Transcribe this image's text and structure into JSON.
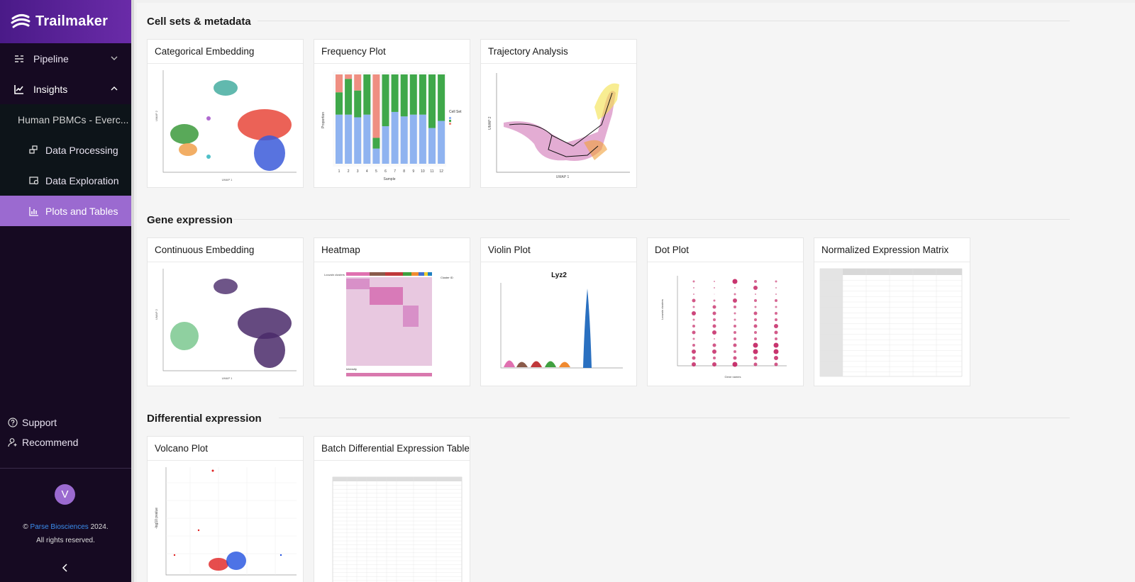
{
  "brand": {
    "name": "Trailmaker"
  },
  "nav": {
    "pipeline": "Pipeline",
    "insights": "Insights",
    "project": "Human PBMCs - Everc...",
    "data_processing": "Data Processing",
    "data_exploration": "Data Exploration",
    "plots_tables": "Plots and Tables"
  },
  "bottom": {
    "support": "Support",
    "recommend": "Recommend",
    "avatar_letter": "V",
    "copyright_prefix": "©",
    "copyright_company": "Parse Biosciences",
    "copyright_year": "2024.",
    "rights": "All rights reserved."
  },
  "sections": {
    "cell_sets": "Cell sets & metadata",
    "gene_expression": "Gene expression",
    "differential": "Differential expression"
  },
  "cards": {
    "categorical_embedding": "Categorical Embedding",
    "frequency_plot": "Frequency Plot",
    "trajectory_analysis": "Trajectory Analysis",
    "continuous_embedding": "Continuous Embedding",
    "heatmap": "Heatmap",
    "violin_plot": "Violin Plot",
    "dot_plot": "Dot Plot",
    "normalized_matrix": "Normalized Expression Matrix",
    "volcano_plot": "Volcano Plot",
    "batch_de_table": "Batch Differential Expression Table"
  },
  "thumb_text": {
    "umap1": "UMAP 1",
    "umap2": "UMAP 2",
    "proportion": "Proportion",
    "sample": "Sample",
    "cell_set": "Cell Set",
    "freq_ticks": [
      "1",
      "2",
      "3",
      "4",
      "5",
      "6",
      "7",
      "8",
      "9",
      "10",
      "11",
      "12"
    ],
    "violin_title": "Lyz2",
    "louvain": "Louvain clusters",
    "cluster_id": "Cluster ID",
    "intensity": "Intensity",
    "gene_names": "Gene names",
    "log10": "-log10 pvalue"
  },
  "colors": {
    "sidebar_bg": "#160a22",
    "brand_purple": "#5a23a0",
    "active_item": "#9b6ad0",
    "link_blue": "#3b8ff0"
  },
  "icons": {
    "pipeline": "pipeline-icon",
    "insights": "chart-icon",
    "support": "question-circle-icon",
    "recommend": "user-add-icon",
    "collapse": "chevron-left-icon"
  }
}
